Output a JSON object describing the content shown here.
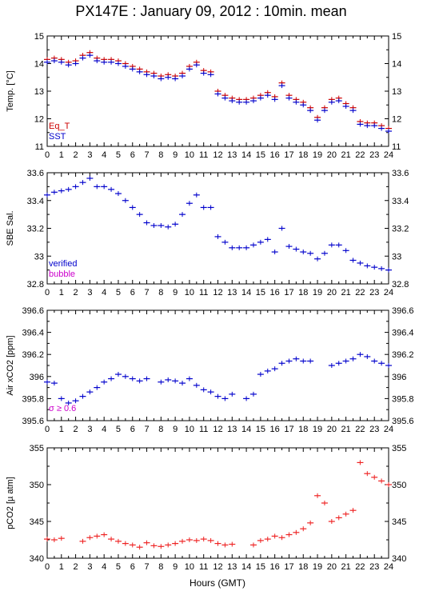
{
  "title": "PX147E : January 09, 2012 : 10min. mean",
  "xlabel": "Hours (GMT)",
  "x_ticks": [
    "0",
    "1",
    "2",
    "3",
    "4",
    "5",
    "6",
    "7",
    "8",
    "9",
    "10",
    "11",
    "12",
    "13",
    "14",
    "15",
    "16",
    "17",
    "18",
    "19",
    "20",
    "21",
    "22",
    "23",
    "24"
  ],
  "colors": {
    "eq_t": "#cc0000",
    "sst": "#0000cc",
    "verified": "#0000cc",
    "bubble": "#cc00cc",
    "pco2": "#ee2222",
    "axis": "#000000"
  },
  "chart_data": [
    {
      "type": "line",
      "ylabel": "Temp. [°C]",
      "xlim": [
        0,
        24
      ],
      "ylim": [
        11,
        15
      ],
      "y_ticks": [
        "11",
        "12",
        "13",
        "14",
        "15"
      ],
      "legend": {
        "placement": "bottom-left",
        "labels": [
          "Eq_T",
          "SST"
        ]
      },
      "x": [
        0,
        0.5,
        1,
        1.5,
        2,
        2.5,
        3,
        3.5,
        4,
        4.5,
        5,
        5.5,
        6,
        6.5,
        7,
        7.5,
        8,
        8.5,
        9,
        9.5,
        10,
        10.5,
        11,
        11.5,
        12,
        12.5,
        13,
        13.5,
        14,
        14.5,
        15,
        15.5,
        16,
        16.5,
        17,
        17.5,
        18,
        18.5,
        19,
        19.5,
        20,
        20.5,
        21,
        21.5,
        22,
        22.5,
        23,
        23.5,
        24
      ],
      "series": [
        {
          "name": "Eq_T",
          "values": [
            14.15,
            14.2,
            14.15,
            14.05,
            14.1,
            14.3,
            14.4,
            14.2,
            14.15,
            14.15,
            14.1,
            14.0,
            13.9,
            13.8,
            13.7,
            13.65,
            13.55,
            13.6,
            13.55,
            13.65,
            13.9,
            14.05,
            13.75,
            13.7,
            13.0,
            12.85,
            12.75,
            12.7,
            12.7,
            12.75,
            12.85,
            12.95,
            12.8,
            13.3,
            12.85,
            12.7,
            12.6,
            12.4,
            12.05,
            12.4,
            12.7,
            12.75,
            12.55,
            12.4,
            11.9,
            11.85,
            11.85,
            11.75,
            11.65
          ]
        },
        {
          "name": "SST",
          "values": [
            14.05,
            14.1,
            14.05,
            13.95,
            14.0,
            14.2,
            14.3,
            14.1,
            14.05,
            14.05,
            14.0,
            13.9,
            13.8,
            13.7,
            13.6,
            13.55,
            13.45,
            13.5,
            13.45,
            13.55,
            13.8,
            13.95,
            13.65,
            13.6,
            12.9,
            12.75,
            12.65,
            12.6,
            12.6,
            12.65,
            12.75,
            12.85,
            12.7,
            13.2,
            12.75,
            12.6,
            12.5,
            12.3,
            11.95,
            12.3,
            12.6,
            12.65,
            12.45,
            12.3,
            11.8,
            11.75,
            11.75,
            11.65,
            11.55
          ]
        }
      ]
    },
    {
      "type": "scatter",
      "ylabel": "SBE Sal.",
      "xlim": [
        0,
        24
      ],
      "ylim": [
        32.8,
        33.6
      ],
      "y_ticks": [
        "32.8",
        "33",
        "33.2",
        "33.4",
        "33.6"
      ],
      "legend": {
        "placement": "bottom-left",
        "labels": [
          "verified",
          "bubble"
        ]
      },
      "x": [
        0,
        0.5,
        1,
        1.5,
        2,
        2.5,
        3,
        3.5,
        4,
        4.5,
        5,
        5.5,
        6,
        6.5,
        7,
        7.5,
        8,
        8.5,
        9,
        9.5,
        10,
        10.5,
        11,
        11.5,
        12,
        12.5,
        13,
        13.5,
        14,
        14.5,
        15,
        15.5,
        16,
        16.5,
        17,
        17.5,
        18,
        18.5,
        19,
        19.5,
        20,
        20.5,
        21,
        21.5,
        22,
        22.5,
        23,
        23.5,
        24
      ],
      "series": [
        {
          "name": "verified",
          "values": [
            33.44,
            33.46,
            33.47,
            33.48,
            33.5,
            33.53,
            33.56,
            33.5,
            33.5,
            33.48,
            33.45,
            33.4,
            33.35,
            33.3,
            33.24,
            33.22,
            33.22,
            33.21,
            33.23,
            33.3,
            33.38,
            33.44,
            33.35,
            33.35,
            33.14,
            33.1,
            33.06,
            33.06,
            33.06,
            33.08,
            33.1,
            33.12,
            33.03,
            33.2,
            33.07,
            33.05,
            33.03,
            33.02,
            32.98,
            33.02,
            33.08,
            33.08,
            33.04,
            32.97,
            32.95,
            32.93,
            32.92,
            32.91,
            32.9
          ]
        }
      ]
    },
    {
      "type": "scatter",
      "ylabel": "Air xCO2 [ppm]",
      "xlim": [
        0,
        24
      ],
      "ylim": [
        395.6,
        396.6
      ],
      "y_ticks": [
        "395.6",
        "395.8",
        "396",
        "396.2",
        "396.4",
        "396.6"
      ],
      "annotation": "σ ≥ 0.6",
      "x": [
        0,
        0.5,
        1,
        1.5,
        2,
        2.5,
        3,
        3.5,
        4,
        4.5,
        5,
        5.5,
        6,
        6.5,
        7,
        8,
        8.5,
        9,
        9.5,
        10,
        10.5,
        11,
        11.5,
        12,
        12.5,
        13,
        14,
        14.5,
        15,
        15.5,
        16,
        16.5,
        17,
        17.5,
        18,
        18.5,
        20,
        20.5,
        21,
        21.5,
        22,
        22.5,
        23,
        23.5,
        24
      ],
      "series": [
        {
          "name": "",
          "values": [
            395.95,
            395.94,
            395.8,
            395.76,
            395.78,
            395.82,
            395.86,
            395.9,
            395.95,
            395.98,
            396.02,
            396.0,
            395.98,
            395.96,
            395.98,
            395.95,
            395.97,
            395.96,
            395.94,
            395.98,
            395.92,
            395.88,
            395.86,
            395.82,
            395.8,
            395.84,
            395.8,
            395.84,
            396.02,
            396.05,
            396.07,
            396.12,
            396.14,
            396.16,
            396.14,
            396.14,
            396.1,
            396.12,
            396.14,
            396.16,
            396.2,
            396.18,
            396.14,
            396.12,
            396.1
          ]
        }
      ]
    },
    {
      "type": "scatter",
      "ylabel": "pCO2 [µ atm]",
      "xlim": [
        0,
        24
      ],
      "ylim": [
        340,
        355
      ],
      "y_ticks": [
        "340",
        "345",
        "350",
        "355"
      ],
      "x": [
        0,
        0.5,
        1,
        2.5,
        3,
        3.5,
        4,
        4.5,
        5,
        5.5,
        6,
        6.5,
        7,
        7.5,
        8,
        8.5,
        9,
        9.5,
        10,
        10.5,
        11,
        11.5,
        12,
        12.5,
        13,
        14.5,
        15,
        15.5,
        16,
        16.5,
        17,
        17.5,
        18,
        18.5,
        19,
        19.5,
        20,
        20.5,
        21,
        21.5,
        22,
        22.5,
        23,
        23.5,
        24
      ],
      "series": [
        {
          "name": "pCO2",
          "values": [
            342.6,
            342.5,
            342.7,
            342.3,
            342.8,
            343.0,
            343.2,
            342.6,
            342.3,
            342.0,
            341.8,
            341.5,
            342.1,
            341.7,
            341.6,
            341.8,
            342.0,
            342.3,
            342.5,
            342.4,
            342.6,
            342.4,
            342.0,
            341.8,
            341.9,
            341.8,
            342.4,
            342.6,
            343.0,
            342.8,
            343.2,
            343.5,
            344.0,
            344.8,
            348.5,
            347.5,
            345.0,
            345.5,
            346.0,
            346.5,
            353.0,
            351.5,
            351.0,
            350.5,
            350.0
          ]
        }
      ]
    }
  ]
}
